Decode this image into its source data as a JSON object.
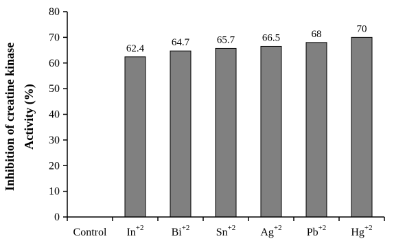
{
  "chart_data": {
    "type": "bar",
    "categories": [
      {
        "base": "Control",
        "sup": ""
      },
      {
        "base": "In",
        "sup": "+2"
      },
      {
        "base": "Bi",
        "sup": "+2"
      },
      {
        "base": "Sn",
        "sup": "+2"
      },
      {
        "base": "Ag",
        "sup": "+2"
      },
      {
        "base": "Pb",
        "sup": "+2"
      },
      {
        "base": "Hg",
        "sup": "+2"
      }
    ],
    "values": [
      0,
      62.4,
      64.7,
      65.7,
      66.5,
      68,
      70
    ],
    "data_labels": [
      "",
      "62.4",
      "64.7",
      "65.7",
      "66.5",
      "68",
      "70"
    ],
    "ylabel_line1": "Inhibition of creatine kinase",
    "ylabel_line2": "Activity (%)",
    "xlabel": "",
    "title": "",
    "ylim": [
      0,
      80
    ],
    "yticks": [
      0,
      10,
      20,
      30,
      40,
      50,
      60,
      70,
      80
    ],
    "grid": false,
    "bar_color": "#808080",
    "bar_edge_color": "#000000"
  }
}
